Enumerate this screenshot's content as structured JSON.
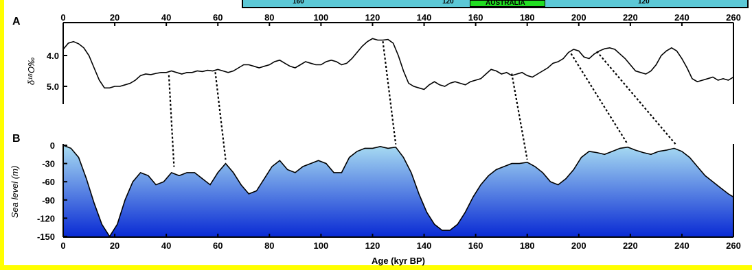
{
  "map_strip": {
    "labels": [
      "160",
      "120",
      "AUSTRALIA",
      "120"
    ],
    "land_color": "#22dd22",
    "sea_color": "#5cc8d6"
  },
  "chart_data": [
    {
      "type": "line",
      "panel_label": "A",
      "ylabel": "δ¹⁸O‰",
      "ylim": [
        5.5,
        3.4
      ],
      "yticks": [
        4.0,
        5.0
      ],
      "xlim": [
        0,
        260
      ],
      "xticks": [
        0,
        20,
        40,
        60,
        80,
        100,
        120,
        140,
        160,
        180,
        200,
        220,
        240,
        260
      ],
      "x_axis_position": "top",
      "grid": false,
      "series": [
        {
          "color": "#000000",
          "x": [
            0,
            2,
            4,
            6,
            8,
            10,
            12,
            14,
            16,
            18,
            20,
            22,
            24,
            26,
            28,
            30,
            32,
            34,
            36,
            38,
            40,
            42,
            44,
            46,
            48,
            50,
            52,
            54,
            56,
            58,
            60,
            62,
            64,
            66,
            68,
            70,
            72,
            74,
            76,
            78,
            80,
            82,
            84,
            86,
            88,
            90,
            92,
            94,
            96,
            98,
            100,
            102,
            104,
            106,
            108,
            110,
            112,
            114,
            116,
            118,
            120,
            122,
            124,
            126,
            128,
            130,
            132,
            134,
            136,
            138,
            140,
            142,
            144,
            146,
            148,
            150,
            152,
            154,
            156,
            158,
            160,
            162,
            164,
            166,
            168,
            170,
            172,
            174,
            176,
            178,
            180,
            182,
            184,
            186,
            188,
            190,
            192,
            194,
            196,
            198,
            200,
            202,
            204,
            206,
            208,
            210,
            212,
            214,
            216,
            218,
            220,
            222,
            224,
            226,
            228,
            230,
            232,
            234,
            236,
            238,
            240,
            242,
            244,
            246,
            248,
            250,
            252,
            254,
            256,
            258,
            260
          ],
          "y": [
            3.8,
            3.6,
            3.55,
            3.62,
            3.75,
            4.0,
            4.4,
            4.8,
            5.05,
            5.05,
            5.0,
            5.0,
            4.95,
            4.9,
            4.8,
            4.65,
            4.6,
            4.62,
            4.58,
            4.55,
            4.55,
            4.5,
            4.55,
            4.6,
            4.55,
            4.55,
            4.5,
            4.52,
            4.48,
            4.5,
            4.45,
            4.5,
            4.55,
            4.5,
            4.4,
            4.3,
            4.3,
            4.35,
            4.4,
            4.35,
            4.3,
            4.2,
            4.15,
            4.25,
            4.35,
            4.4,
            4.3,
            4.2,
            4.25,
            4.3,
            4.3,
            4.2,
            4.15,
            4.2,
            4.3,
            4.25,
            4.1,
            3.9,
            3.7,
            3.55,
            3.45,
            3.5,
            3.5,
            3.48,
            3.6,
            4.0,
            4.5,
            4.9,
            5.0,
            5.05,
            5.1,
            4.95,
            4.85,
            4.95,
            5.0,
            4.9,
            4.85,
            4.9,
            4.95,
            4.85,
            4.8,
            4.75,
            4.6,
            4.45,
            4.5,
            4.6,
            4.55,
            4.65,
            4.6,
            4.55,
            4.65,
            4.7,
            4.6,
            4.5,
            4.4,
            4.25,
            4.2,
            4.1,
            3.9,
            3.8,
            3.85,
            4.05,
            4.1,
            3.95,
            3.85,
            3.78,
            3.75,
            3.8,
            3.95,
            4.1,
            4.3,
            4.5,
            4.55,
            4.6,
            4.5,
            4.3,
            4.0,
            3.85,
            3.75,
            3.85,
            4.1,
            4.4,
            4.75,
            4.85,
            4.8,
            4.75,
            4.7,
            4.8,
            4.75,
            4.8,
            4.7
          ]
        }
      ]
    },
    {
      "type": "area",
      "panel_label": "B",
      "ylabel": "Sea level (m)",
      "xlabel": "Age (kyr BP)",
      "ylim": [
        -150,
        0
      ],
      "yticks": [
        0,
        -30,
        -60,
        -90,
        -120,
        -150
      ],
      "xlim": [
        0,
        260
      ],
      "xticks": [
        0,
        20,
        40,
        60,
        80,
        100,
        120,
        140,
        160,
        180,
        200,
        220,
        240,
        260
      ],
      "grid": false,
      "gradient": [
        "#a8dcf2",
        "#0a2bd4"
      ],
      "series": [
        {
          "x": [
            0,
            3,
            6,
            9,
            12,
            15,
            18,
            21,
            24,
            27,
            30,
            33,
            36,
            39,
            42,
            45,
            48,
            51,
            54,
            57,
            60,
            63,
            66,
            69,
            72,
            75,
            78,
            81,
            84,
            87,
            90,
            93,
            96,
            99,
            102,
            105,
            108,
            111,
            114,
            117,
            120,
            123,
            126,
            129,
            132,
            135,
            138,
            141,
            144,
            147,
            150,
            153,
            156,
            159,
            162,
            165,
            168,
            171,
            174,
            177,
            180,
            183,
            186,
            189,
            192,
            195,
            198,
            201,
            204,
            207,
            210,
            213,
            216,
            219,
            222,
            225,
            228,
            231,
            234,
            237,
            240,
            243,
            246,
            249,
            252,
            255,
            258,
            260
          ],
          "y": [
            0,
            -5,
            -20,
            -55,
            -95,
            -130,
            -150,
            -130,
            -90,
            -60,
            -45,
            -50,
            -65,
            -60,
            -45,
            -50,
            -45,
            -45,
            -55,
            -65,
            -45,
            -30,
            -45,
            -65,
            -80,
            -75,
            -55,
            -35,
            -25,
            -40,
            -45,
            -35,
            -30,
            -25,
            -30,
            -45,
            -45,
            -20,
            -10,
            -5,
            -5,
            -2,
            -5,
            -3,
            -20,
            -45,
            -80,
            -110,
            -130,
            -140,
            -140,
            -130,
            -110,
            -85,
            -65,
            -50,
            -40,
            -35,
            -30,
            -30,
            -28,
            -35,
            -45,
            -60,
            -65,
            -55,
            -40,
            -20,
            -10,
            -12,
            -15,
            -10,
            -5,
            -3,
            -8,
            -12,
            -15,
            -10,
            -8,
            -5,
            -10,
            -20,
            -35,
            -50,
            -60,
            -70,
            -80,
            -85
          ]
        }
      ]
    }
  ],
  "correlation_lines": [
    {
      "a_x": 41,
      "a_y": 4.55,
      "b_x": 43,
      "b_y": -40
    },
    {
      "a_x": 59,
      "a_y": 4.45,
      "b_x": 63,
      "b_y": -28
    },
    {
      "a_x": 124,
      "a_y": 3.45,
      "b_x": 129,
      "b_y": -3
    },
    {
      "a_x": 174,
      "a_y": 4.5,
      "b_x": 180,
      "b_y": -28
    },
    {
      "a_x": 197,
      "a_y": 3.85,
      "b_x": 219,
      "b_y": -3
    },
    {
      "a_x": 207,
      "a_y": 3.78,
      "b_x": 238,
      "b_y": -5
    }
  ]
}
